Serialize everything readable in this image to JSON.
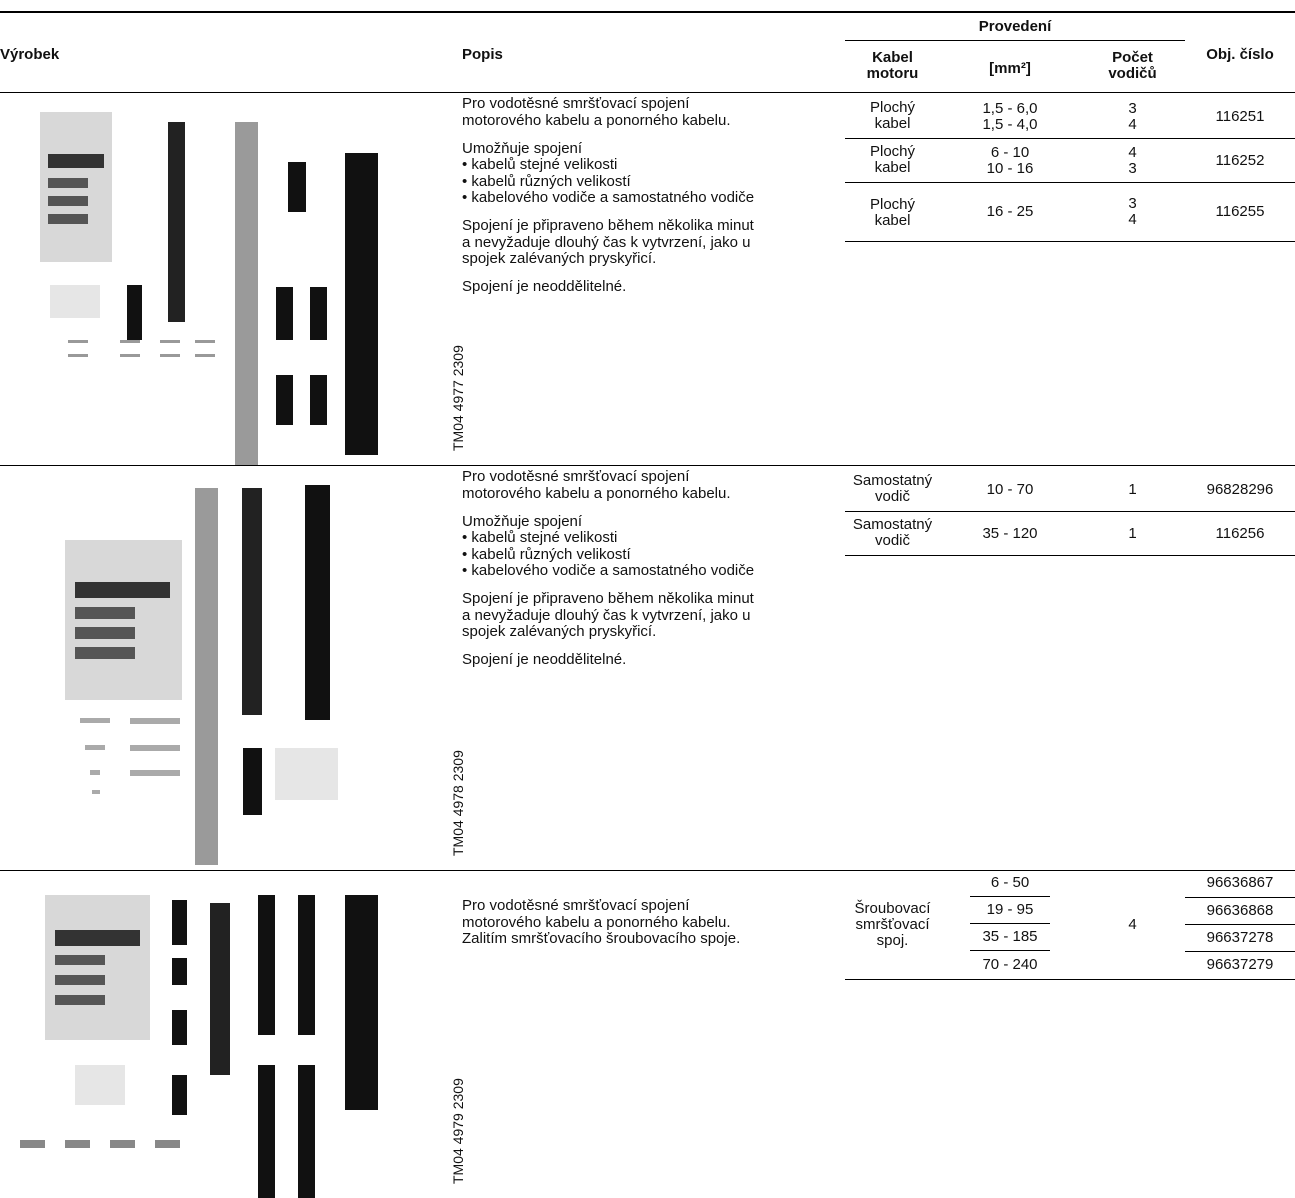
{
  "header": {
    "group": "Provedení",
    "columns": [
      "Výrobek",
      "Popis",
      "Kabel motoru",
      "[mm²]",
      "Počet vodičů",
      "Obj. číslo"
    ]
  },
  "products": [
    {
      "image_code": "TM04 4977 2309",
      "description": [
        [
          "Pro vodotěsné smršťovací spojení",
          "motorového kabelu a ponorného kabelu."
        ],
        [
          "Umožňuje spojení",
          "• kabelů stejné velikosti",
          "• kabelů různých velikostí",
          "• kabelového vodiče a samostatného vodiče"
        ],
        [
          "Spojení je připraveno během několika minut",
          "a nevyžaduje dlouhý čas k vytvrzení, jako u",
          "spojek zalévaných pryskyřicí."
        ],
        [
          "Spojení je neoddělitelné."
        ]
      ],
      "variants": [
        {
          "cable": [
            "Plochý",
            "kabel"
          ],
          "section": [
            "1,5 - 6,0",
            "1,5 - 4,0"
          ],
          "conductors": [
            "3",
            "4"
          ],
          "order_no": "116251"
        },
        {
          "cable": [
            "Plochý",
            "kabel"
          ],
          "section": [
            "6 - 10",
            "10 - 16"
          ],
          "conductors": [
            "4",
            "3"
          ],
          "order_no": "116252"
        },
        {
          "cable": [
            "Plochý",
            "kabel"
          ],
          "section": [
            "16 - 25"
          ],
          "conductors": [
            "3",
            "4"
          ],
          "order_no": "116255"
        }
      ]
    },
    {
      "image_code": "TM04 4978 2309",
      "description": [
        [
          "Pro vodotěsné smršťovací spojení",
          "motorového kabelu a ponorného kabelu."
        ],
        [
          "Umožňuje spojení",
          "• kabelů stejné velikosti",
          "• kabelů různých velikostí",
          "• kabelového vodiče a samostatného vodiče"
        ],
        [
          "Spojení je připraveno během několika minut",
          "a nevyžaduje dlouhý čas k vytvrzení, jako u",
          "spojek zalévaných pryskyřicí."
        ],
        [
          "Spojení je neoddělitelné."
        ]
      ],
      "variants": [
        {
          "cable": [
            "Samostatný",
            "vodič"
          ],
          "section": [
            "10 - 70"
          ],
          "conductors": [
            "1"
          ],
          "order_no": "96828296"
        },
        {
          "cable": [
            "Samostatný",
            "vodič"
          ],
          "section": [
            "35 - 120"
          ],
          "conductors": [
            "1"
          ],
          "order_no": "116256"
        }
      ]
    },
    {
      "image_code": "TM04 4979 2309",
      "description": [
        [
          "Pro vodotěsné smršťovací spojení",
          "motorového kabelu a ponorného kabelu.",
          "Zalitím smršťovacího šroubovacího spoje."
        ]
      ],
      "variant_group": {
        "cable": [
          "Šroubovací",
          "smršťovací",
          "spoj."
        ],
        "conductors": [
          "4"
        ],
        "sections": [
          "6 - 50",
          "19 - 95",
          "35 - 185",
          "70 - 240"
        ],
        "order_nos": [
          "96636867",
          "96636868",
          "96637278",
          "96637279"
        ]
      }
    }
  ]
}
